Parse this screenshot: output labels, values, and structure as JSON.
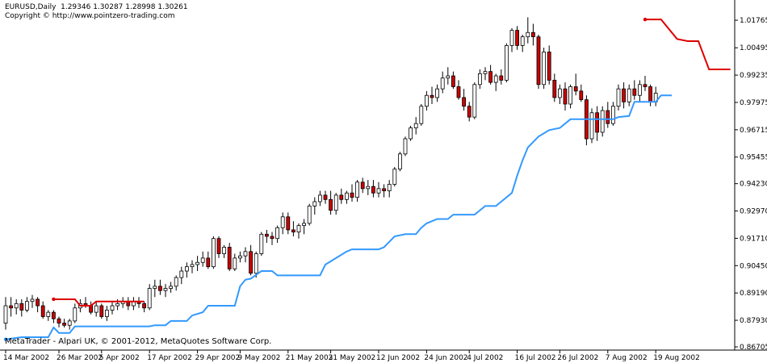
{
  "header": {
    "symbol_line": "EURUSD,Daily  1.29346 1.30287 1.28998 1.30261",
    "copyright": "Copyright © http://www.pointzero-trading.com"
  },
  "footer": {
    "text": "MetaTrader - Alpari UK, © 2001-2012, MetaQuotes Software Corp."
  },
  "colors": {
    "bull_body": "#ffffff",
    "bear_body": "#cc0000",
    "wick": "#000000",
    "stop_up": "#3399ff",
    "stop_down": "#dd0000"
  },
  "chart_data": {
    "type": "candlestick",
    "y_ticks": [
      "1.01765",
      "1.00495",
      "0.99235",
      "0.97975",
      "0.96715",
      "0.95455",
      "0.94230",
      "0.92970",
      "0.91710",
      "0.90450",
      "0.89190",
      "0.87930",
      "0.86705"
    ],
    "ylim": [
      0.86705,
      1.024
    ],
    "x_ticks": [
      {
        "label": "14 Mar 2002",
        "bar": 0
      },
      {
        "label": "26 Mar 2002",
        "bar": 10
      },
      {
        "label": "5 Apr 2002",
        "bar": 18
      },
      {
        "label": "17 Apr 2002",
        "bar": 27
      },
      {
        "label": "29 Apr 2002",
        "bar": 36
      },
      {
        "label": "9 May 2002",
        "bar": 44
      },
      {
        "label": "21 May 2002",
        "bar": 53
      },
      {
        "label": "31 May 2002",
        "bar": 61
      },
      {
        "label": "12 Jun 2002",
        "bar": 70
      },
      {
        "label": "24 Jun 2002",
        "bar": 79
      },
      {
        "label": "4 Jul 2002",
        "bar": 87
      },
      {
        "label": "16 Jul 2002",
        "bar": 96
      },
      {
        "label": "26 Jul 2002",
        "bar": 104
      },
      {
        "label": "7 Aug 2002",
        "bar": 113
      },
      {
        "label": "19 Aug 2002",
        "bar": 122
      }
    ],
    "candles": [
      [
        0.878,
        0.89,
        0.875,
        0.886
      ],
      [
        0.886,
        0.89,
        0.881,
        0.885
      ],
      [
        0.885,
        0.889,
        0.882,
        0.887
      ],
      [
        0.887,
        0.889,
        0.881,
        0.884
      ],
      [
        0.884,
        0.89,
        0.883,
        0.888
      ],
      [
        0.888,
        0.891,
        0.885,
        0.889
      ],
      [
        0.889,
        0.89,
        0.883,
        0.886
      ],
      [
        0.886,
        0.888,
        0.88,
        0.881
      ],
      [
        0.881,
        0.884,
        0.879,
        0.883
      ],
      [
        0.883,
        0.884,
        0.878,
        0.88
      ],
      [
        0.88,
        0.881,
        0.876,
        0.878
      ],
      [
        0.878,
        0.88,
        0.876,
        0.877
      ],
      [
        0.877,
        0.88,
        0.875,
        0.879
      ],
      [
        0.879,
        0.887,
        0.878,
        0.885
      ],
      [
        0.885,
        0.889,
        0.883,
        0.887
      ],
      [
        0.887,
        0.89,
        0.885,
        0.886
      ],
      [
        0.886,
        0.888,
        0.882,
        0.883
      ],
      [
        0.883,
        0.888,
        0.881,
        0.886
      ],
      [
        0.886,
        0.887,
        0.88,
        0.881
      ],
      [
        0.881,
        0.886,
        0.879,
        0.884
      ],
      [
        0.884,
        0.888,
        0.882,
        0.886
      ],
      [
        0.886,
        0.889,
        0.884,
        0.887
      ],
      [
        0.887,
        0.89,
        0.885,
        0.888
      ],
      [
        0.888,
        0.89,
        0.884,
        0.886
      ],
      [
        0.886,
        0.89,
        0.884,
        0.888
      ],
      [
        0.888,
        0.89,
        0.885,
        0.887
      ],
      [
        0.887,
        0.888,
        0.883,
        0.885
      ],
      [
        0.885,
        0.896,
        0.884,
        0.894
      ],
      [
        0.894,
        0.898,
        0.89,
        0.895
      ],
      [
        0.895,
        0.898,
        0.891,
        0.893
      ],
      [
        0.893,
        0.896,
        0.89,
        0.894
      ],
      [
        0.894,
        0.897,
        0.892,
        0.895
      ],
      [
        0.895,
        0.9,
        0.893,
        0.899
      ],
      [
        0.899,
        0.904,
        0.896,
        0.902
      ],
      [
        0.902,
        0.906,
        0.899,
        0.904
      ],
      [
        0.904,
        0.907,
        0.901,
        0.905
      ],
      [
        0.905,
        0.909,
        0.902,
        0.906
      ],
      [
        0.906,
        0.911,
        0.904,
        0.908
      ],
      [
        0.908,
        0.911,
        0.903,
        0.904
      ],
      [
        0.904,
        0.918,
        0.903,
        0.917
      ],
      [
        0.917,
        0.918,
        0.908,
        0.91
      ],
      [
        0.91,
        0.914,
        0.908,
        0.913
      ],
      [
        0.913,
        0.915,
        0.902,
        0.903
      ],
      [
        0.903,
        0.91,
        0.902,
        0.908
      ],
      [
        0.908,
        0.911,
        0.906,
        0.909
      ],
      [
        0.909,
        0.913,
        0.906,
        0.911
      ],
      [
        0.911,
        0.914,
        0.9,
        0.901
      ],
      [
        0.901,
        0.911,
        0.899,
        0.91
      ],
      [
        0.91,
        0.92,
        0.909,
        0.919
      ],
      [
        0.919,
        0.921,
        0.915,
        0.918
      ],
      [
        0.918,
        0.92,
        0.914,
        0.917
      ],
      [
        0.917,
        0.923,
        0.915,
        0.922
      ],
      [
        0.922,
        0.929,
        0.919,
        0.927
      ],
      [
        0.927,
        0.929,
        0.919,
        0.921
      ],
      [
        0.921,
        0.925,
        0.918,
        0.92
      ],
      [
        0.92,
        0.924,
        0.917,
        0.923
      ],
      [
        0.923,
        0.926,
        0.919,
        0.924
      ],
      [
        0.924,
        0.933,
        0.923,
        0.932
      ],
      [
        0.932,
        0.936,
        0.928,
        0.934
      ],
      [
        0.934,
        0.939,
        0.932,
        0.937
      ],
      [
        0.937,
        0.939,
        0.933,
        0.935
      ],
      [
        0.935,
        0.939,
        0.928,
        0.93
      ],
      [
        0.93,
        0.938,
        0.928,
        0.937
      ],
      [
        0.937,
        0.94,
        0.933,
        0.935
      ],
      [
        0.935,
        0.939,
        0.933,
        0.938
      ],
      [
        0.938,
        0.942,
        0.934,
        0.936
      ],
      [
        0.936,
        0.944,
        0.934,
        0.943
      ],
      [
        0.943,
        0.945,
        0.938,
        0.94
      ],
      [
        0.94,
        0.944,
        0.937,
        0.941
      ],
      [
        0.941,
        0.944,
        0.936,
        0.938
      ],
      [
        0.938,
        0.943,
        0.936,
        0.94
      ],
      [
        0.94,
        0.942,
        0.936,
        0.939
      ],
      [
        0.939,
        0.944,
        0.936,
        0.942
      ],
      [
        0.942,
        0.95,
        0.941,
        0.949
      ],
      [
        0.949,
        0.957,
        0.948,
        0.956
      ],
      [
        0.956,
        0.964,
        0.955,
        0.963
      ],
      [
        0.963,
        0.969,
        0.962,
        0.968
      ],
      [
        0.968,
        0.973,
        0.965,
        0.97
      ],
      [
        0.97,
        0.979,
        0.969,
        0.978
      ],
      [
        0.978,
        0.985,
        0.976,
        0.983
      ],
      [
        0.983,
        0.987,
        0.979,
        0.982
      ],
      [
        0.982,
        0.988,
        0.98,
        0.986
      ],
      [
        0.986,
        0.994,
        0.984,
        0.991
      ],
      [
        0.991,
        0.996,
        0.988,
        0.992
      ],
      [
        0.992,
        0.994,
        0.986,
        0.987
      ],
      [
        0.987,
        0.99,
        0.981,
        0.982
      ],
      [
        0.982,
        0.986,
        0.976,
        0.978
      ],
      [
        0.978,
        0.98,
        0.971,
        0.973
      ],
      [
        0.973,
        0.989,
        0.972,
        0.988
      ],
      [
        0.988,
        0.995,
        0.986,
        0.993
      ],
      [
        0.993,
        0.996,
        0.99,
        0.994
      ],
      [
        0.994,
        0.997,
        0.988,
        0.989
      ],
      [
        0.989,
        0.993,
        0.985,
        0.992
      ],
      [
        0.992,
        0.995,
        0.988,
        0.99
      ],
      [
        0.99,
        1.007,
        0.989,
        1.006
      ],
      [
        1.006,
        1.014,
        1.003,
        1.013
      ],
      [
        1.013,
        1.015,
        1.004,
        1.006
      ],
      [
        1.006,
        1.011,
        1.003,
        1.01
      ],
      [
        1.01,
        1.019,
        1.007,
        1.012
      ],
      [
        1.012,
        1.016,
        1.006,
        1.01
      ],
      [
        1.01,
        1.011,
        0.986,
        0.988
      ],
      [
        0.988,
        1.005,
        0.986,
        1.003
      ],
      [
        1.003,
        1.006,
        0.988,
        0.99
      ],
      [
        0.99,
        0.993,
        0.98,
        0.982
      ],
      [
        0.982,
        0.988,
        0.979,
        0.986
      ],
      [
        0.986,
        0.989,
        0.976,
        0.979
      ],
      [
        0.979,
        0.988,
        0.977,
        0.987
      ],
      [
        0.987,
        0.993,
        0.983,
        0.985
      ],
      [
        0.985,
        0.988,
        0.98,
        0.981
      ],
      [
        0.981,
        0.983,
        0.96,
        0.963
      ],
      [
        0.963,
        0.977,
        0.961,
        0.975
      ],
      [
        0.975,
        0.978,
        0.962,
        0.966
      ],
      [
        0.966,
        0.978,
        0.964,
        0.976
      ],
      [
        0.976,
        0.98,
        0.968,
        0.97
      ],
      [
        0.97,
        0.98,
        0.969,
        0.978
      ],
      [
        0.978,
        0.988,
        0.976,
        0.986
      ],
      [
        0.986,
        0.989,
        0.977,
        0.98
      ],
      [
        0.98,
        0.988,
        0.978,
        0.986
      ],
      [
        0.986,
        0.99,
        0.981,
        0.983
      ],
      [
        0.983,
        0.99,
        0.98,
        0.988
      ],
      [
        0.988,
        0.992,
        0.985,
        0.987
      ],
      [
        0.987,
        0.988,
        0.978,
        0.98
      ],
      [
        0.98,
        0.987,
        0.978,
        0.984
      ]
    ],
    "stop_series": [
      {
        "name": "",
        "color_key": "stop_down",
        "points": [
          [
            9,
            0.889
          ],
          [
            13,
            0.889
          ],
          [
            14,
            0.886
          ],
          [
            16,
            0.886
          ],
          [
            17,
            0.888
          ],
          [
            26,
            0.888
          ]
        ]
      },
      {
        "name": "",
        "color_key": "stop_up",
        "points": [
          [
            0,
            0.8705
          ],
          [
            3,
            0.8715
          ],
          [
            8,
            0.8715
          ],
          [
            9,
            0.876
          ],
          [
            10,
            0.8735
          ],
          [
            12,
            0.8735
          ],
          [
            13,
            0.8765
          ],
          [
            27,
            0.8765
          ],
          [
            28,
            0.877
          ],
          [
            30,
            0.877
          ],
          [
            31,
            0.879
          ],
          [
            34,
            0.879
          ],
          [
            35,
            0.8815
          ],
          [
            37,
            0.883
          ],
          [
            38,
            0.886
          ],
          [
            43,
            0.886
          ],
          [
            44,
            0.895
          ],
          [
            45,
            0.898
          ],
          [
            46,
            0.8985
          ],
          [
            48,
            0.902
          ],
          [
            50,
            0.902
          ],
          [
            51,
            0.9
          ],
          [
            59,
            0.9
          ],
          [
            60,
            0.905
          ],
          [
            62,
            0.908
          ],
          [
            64,
            0.911
          ],
          [
            65,
            0.912
          ],
          [
            70,
            0.912
          ],
          [
            71,
            0.913
          ],
          [
            73,
            0.918
          ],
          [
            75,
            0.919
          ],
          [
            77,
            0.919
          ],
          [
            78,
            0.922
          ],
          [
            79,
            0.924
          ],
          [
            81,
            0.926
          ],
          [
            83,
            0.926
          ],
          [
            84,
            0.928
          ],
          [
            88,
            0.928
          ],
          [
            90,
            0.932
          ],
          [
            92,
            0.932
          ],
          [
            93,
            0.934
          ],
          [
            95,
            0.938
          ],
          [
            96,
            0.946
          ],
          [
            97,
            0.953
          ],
          [
            98,
            0.959
          ],
          [
            100,
            0.964
          ],
          [
            102,
            0.967
          ],
          [
            104,
            0.968
          ],
          [
            106,
            0.972
          ],
          [
            114,
            0.972
          ],
          [
            115,
            0.973
          ],
          [
            117,
            0.9735
          ],
          [
            118,
            0.98
          ],
          [
            122,
            0.98
          ],
          [
            123,
            0.983
          ],
          [
            125,
            0.983
          ]
        ]
      },
      {
        "name": "",
        "color_key": "stop_down",
        "points": [
          [
            120,
            1.018
          ],
          [
            123,
            1.018
          ],
          [
            126,
            1.009
          ],
          [
            128,
            1.008
          ],
          [
            130,
            1.008
          ],
          [
            132,
            0.995
          ],
          [
            134,
            0.995
          ],
          [
            136,
            0.995
          ],
          [
            138,
            0.993
          ],
          [
            141,
            0.993
          ]
        ]
      }
    ]
  }
}
